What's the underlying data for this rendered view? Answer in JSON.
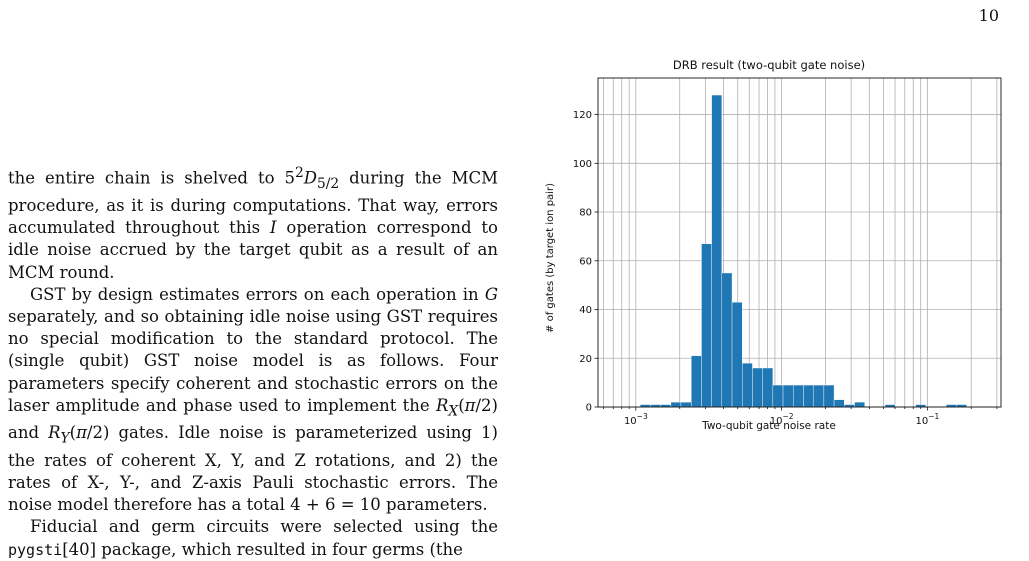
{
  "page": {
    "number": "10"
  },
  "body_text": {
    "p1": "the entire chain is shelved to 5²D₅/₂ during the MCM procedure, as it is during computations. That way, errors accumulated throughout this I operation correspond to idle noise accrued by the target qubit as a result of an MCM round.",
    "p2": "GST by design estimates errors on each operation in G separately, and so obtaining idle noise using GST requires no special modification to the standard protocol. The (single qubit) GST noise model is as follows. Four parameters specify coherent and stochastic errors on the laser amplitude and phase used to implement the R_X(π/2) and R_Y(π/2) gates. Idle noise is parameterized using 1) the rates of coherent X, Y, and Z rotations, and 2) the rates of X-, Y-, and Z-axis Pauli stochastic errors. The noise model therefore has a total 4 + 6 = 10 parameters.",
    "p3": "Fiducial and germ circuits were selected using the pygsti[40] package, which resulted in four germs (the"
  },
  "chart_data": {
    "type": "bar",
    "title": "DRB result (two-qubit gate noise)",
    "xlabel": "Two-qubit gate noise rate",
    "ylabel": "# of gates (by target ion pair)",
    "x_scale": "log",
    "xlim": [
      0.00055,
      0.32
    ],
    "ylim": [
      0,
      135
    ],
    "grid": true,
    "y_ticks": [
      0,
      20,
      40,
      60,
      80,
      100,
      120
    ],
    "x_ticks": [
      {
        "value": 0.001,
        "base": "10",
        "exp": "−3"
      },
      {
        "value": 0.01,
        "base": "10",
        "exp": "−2"
      },
      {
        "value": 0.1,
        "base": "10",
        "exp": "−1"
      }
    ],
    "bar_color": "#1f77b4",
    "bins": [
      {
        "x0": 0.00107,
        "x1": 0.00126,
        "count": 1
      },
      {
        "x0": 0.00126,
        "x1": 0.00148,
        "count": 1
      },
      {
        "x0": 0.00148,
        "x1": 0.00174,
        "count": 1
      },
      {
        "x0": 0.00174,
        "x1": 0.00204,
        "count": 2
      },
      {
        "x0": 0.00204,
        "x1": 0.0024,
        "count": 2
      },
      {
        "x0": 0.0024,
        "x1": 0.00282,
        "count": 21
      },
      {
        "x0": 0.00282,
        "x1": 0.00331,
        "count": 67
      },
      {
        "x0": 0.00331,
        "x1": 0.00389,
        "count": 128
      },
      {
        "x0": 0.00389,
        "x1": 0.00457,
        "count": 55
      },
      {
        "x0": 0.00457,
        "x1": 0.00537,
        "count": 43
      },
      {
        "x0": 0.00537,
        "x1": 0.00631,
        "count": 18
      },
      {
        "x0": 0.00631,
        "x1": 0.00741,
        "count": 16
      },
      {
        "x0": 0.00741,
        "x1": 0.00871,
        "count": 16
      },
      {
        "x0": 0.00871,
        "x1": 0.01023,
        "count": 9
      },
      {
        "x0": 0.01023,
        "x1": 0.01202,
        "count": 9
      },
      {
        "x0": 0.01202,
        "x1": 0.01413,
        "count": 9
      },
      {
        "x0": 0.01413,
        "x1": 0.0166,
        "count": 9
      },
      {
        "x0": 0.0166,
        "x1": 0.0195,
        "count": 9
      },
      {
        "x0": 0.0195,
        "x1": 0.02291,
        "count": 9
      },
      {
        "x0": 0.02291,
        "x1": 0.02692,
        "count": 3
      },
      {
        "x0": 0.02692,
        "x1": 0.03163,
        "count": 1
      },
      {
        "x0": 0.03163,
        "x1": 0.03716,
        "count": 2
      },
      {
        "x0": 0.05125,
        "x1": 0.06021,
        "count": 1
      },
      {
        "x0": 0.08305,
        "x1": 0.09757,
        "count": 1
      },
      {
        "x0": 0.1346,
        "x1": 0.1581,
        "count": 1
      },
      {
        "x0": 0.1581,
        "x1": 0.1858,
        "count": 1
      }
    ]
  }
}
